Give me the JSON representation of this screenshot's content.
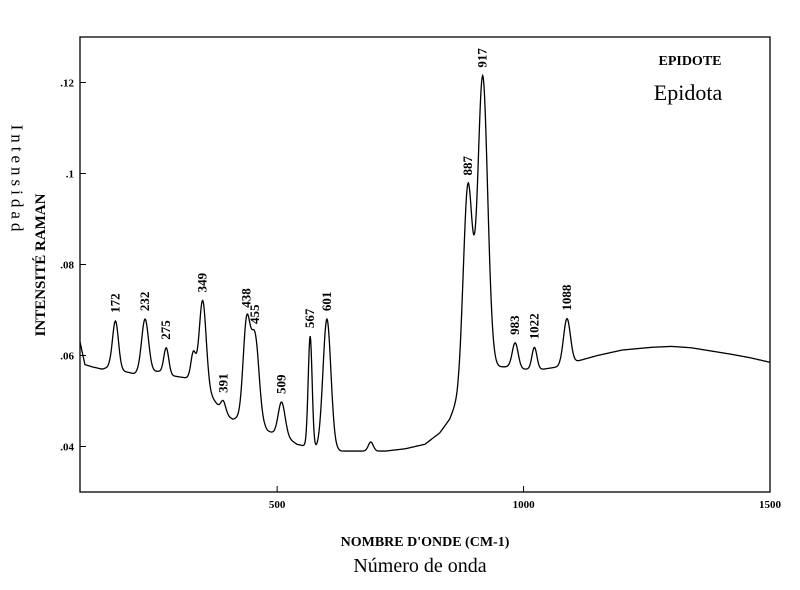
{
  "chart_data": {
    "type": "line",
    "title": "EPIDOTE",
    "subtitle": "Epidota",
    "xlabel": "NOMBRE D'ONDE (CM-1)",
    "xlabel_secondary": "Número de onda",
    "ylabel": "INTENSITÉ RAMAN",
    "ylabel_secondary": "Intensidad",
    "xlim": [
      100,
      1500
    ],
    "ylim": [
      0.03,
      0.13
    ],
    "x_ticks": [
      500,
      1000,
      1500
    ],
    "x_tick_labels": [
      "500",
      "1000",
      "1500"
    ],
    "y_ticks": [
      0.04,
      0.06,
      0.08,
      0.1,
      0.12
    ],
    "y_tick_labels": [
      ".04",
      ".06",
      ".08",
      ".1",
      ".12"
    ],
    "grid": false,
    "legend": "none",
    "line_color": "#000000",
    "baseline": [
      [
        100,
        0.063
      ],
      [
        110,
        0.058
      ],
      [
        125,
        0.0575
      ],
      [
        145,
        0.057
      ],
      [
        160,
        0.0575
      ],
      [
        190,
        0.0565
      ],
      [
        210,
        0.056
      ],
      [
        230,
        0.0565
      ],
      [
        260,
        0.0565
      ],
      [
        290,
        0.0555
      ],
      [
        320,
        0.055
      ],
      [
        340,
        0.054
      ],
      [
        360,
        0.052
      ],
      [
        380,
        0.049
      ],
      [
        395,
        0.047
      ],
      [
        410,
        0.046
      ],
      [
        430,
        0.0465
      ],
      [
        460,
        0.046
      ],
      [
        480,
        0.0435
      ],
      [
        500,
        0.0425
      ],
      [
        520,
        0.042
      ],
      [
        540,
        0.0405
      ],
      [
        560,
        0.04
      ],
      [
        575,
        0.0395
      ],
      [
        590,
        0.0395
      ],
      [
        610,
        0.0395
      ],
      [
        630,
        0.039
      ],
      [
        660,
        0.039
      ],
      [
        690,
        0.039
      ],
      [
        720,
        0.039
      ],
      [
        760,
        0.0395
      ],
      [
        800,
        0.0405
      ],
      [
        830,
        0.043
      ],
      [
        850,
        0.046
      ],
      [
        865,
        0.05
      ],
      [
        875,
        0.054
      ],
      [
        890,
        0.056
      ],
      [
        900,
        0.057
      ],
      [
        920,
        0.058
      ],
      [
        950,
        0.0575
      ],
      [
        970,
        0.0575
      ],
      [
        1000,
        0.057
      ],
      [
        1040,
        0.057
      ],
      [
        1070,
        0.0575
      ],
      [
        1100,
        0.0585
      ],
      [
        1150,
        0.06
      ],
      [
        1200,
        0.0612
      ],
      [
        1260,
        0.0618
      ],
      [
        1300,
        0.062
      ],
      [
        1340,
        0.0617
      ],
      [
        1380,
        0.061
      ],
      [
        1420,
        0.0603
      ],
      [
        1460,
        0.0595
      ],
      [
        1500,
        0.0585
      ]
    ],
    "peaks": [
      {
        "x": 172,
        "amp": 0.0105,
        "w": 6,
        "label": "172"
      },
      {
        "x": 232,
        "amp": 0.0115,
        "w": 7,
        "label": "232"
      },
      {
        "x": 275,
        "amp": 0.0057,
        "w": 5,
        "label": "275"
      },
      {
        "x": 330,
        "amp": 0.006,
        "w": 5,
        "label": ""
      },
      {
        "x": 349,
        "amp": 0.019,
        "w": 7,
        "label": "349"
      },
      {
        "x": 391,
        "amp": 0.0025,
        "w": 5,
        "label": "391"
      },
      {
        "x": 438,
        "amp": 0.0205,
        "w": 7,
        "label": "438"
      },
      {
        "x": 455,
        "amp": 0.018,
        "w": 8,
        "label": "455"
      },
      {
        "x": 509,
        "amp": 0.0075,
        "w": 7,
        "label": "509"
      },
      {
        "x": 567,
        "amp": 0.0245,
        "w": 4,
        "label": "567"
      },
      {
        "x": 601,
        "amp": 0.0285,
        "w": 8,
        "label": "601"
      },
      {
        "x": 690,
        "amp": 0.002,
        "w": 5,
        "label": ""
      },
      {
        "x": 887,
        "amp": 0.0415,
        "w": 9,
        "label": "887"
      },
      {
        "x": 917,
        "amp": 0.0635,
        "w": 10,
        "label": "917"
      },
      {
        "x": 983,
        "amp": 0.0055,
        "w": 6,
        "label": "983"
      },
      {
        "x": 1022,
        "amp": 0.0048,
        "w": 5,
        "label": "1022"
      },
      {
        "x": 1088,
        "amp": 0.01,
        "w": 7,
        "label": "1088"
      }
    ]
  }
}
